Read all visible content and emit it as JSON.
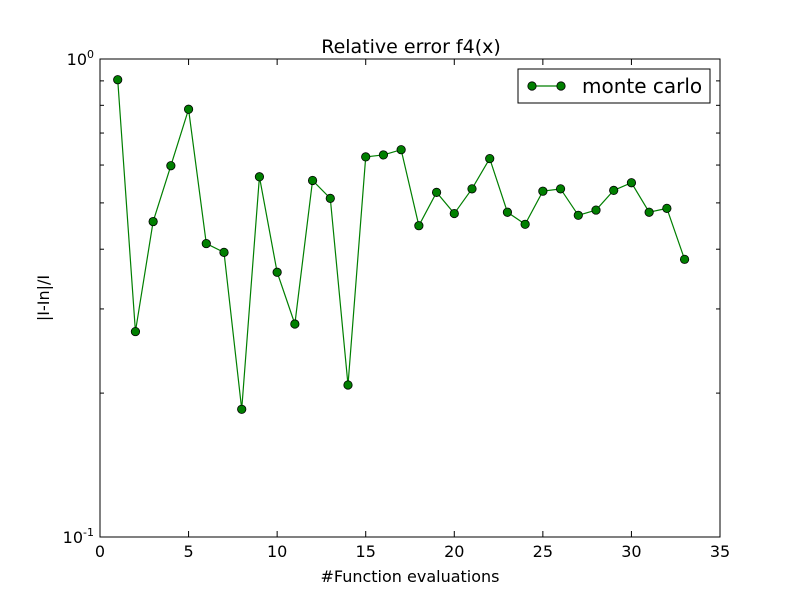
{
  "chart_data": {
    "type": "line",
    "title": "Relative error f4(x)",
    "xlabel": "#Function evaluations",
    "ylabel": "|I-In|/I",
    "xlim": [
      0,
      35
    ],
    "ylim": [
      0.1,
      1.0
    ],
    "yscale": "log",
    "grid": false,
    "legend_position": "top-right",
    "x_ticks": [
      0,
      5,
      10,
      15,
      20,
      25,
      30,
      35
    ],
    "x_tick_labels": [
      "0",
      "5",
      "10",
      "15",
      "20",
      "25",
      "30",
      "35"
    ],
    "y_ticks": [
      0.1,
      1.0
    ],
    "y_tick_labels": [
      {
        "base": "10",
        "exp": "-1"
      },
      {
        "base": "10",
        "exp": "0"
      }
    ],
    "series": [
      {
        "name": "monte carlo",
        "color": "#007f00",
        "marker": "circle",
        "x": [
          1,
          2,
          3,
          4,
          5,
          6,
          7,
          8,
          9,
          10,
          11,
          12,
          13,
          14,
          15,
          16,
          17,
          18,
          19,
          20,
          21,
          22,
          23,
          24,
          25,
          26,
          27,
          28,
          29,
          30,
          31,
          32,
          33
        ],
        "y": [
          0.905,
          0.269,
          0.457,
          0.598,
          0.785,
          0.411,
          0.394,
          0.185,
          0.567,
          0.358,
          0.279,
          0.557,
          0.511,
          0.208,
          0.624,
          0.63,
          0.646,
          0.448,
          0.526,
          0.475,
          0.535,
          0.619,
          0.478,
          0.451,
          0.529,
          0.535,
          0.471,
          0.483,
          0.531,
          0.551,
          0.478,
          0.487,
          0.381
        ]
      }
    ]
  }
}
